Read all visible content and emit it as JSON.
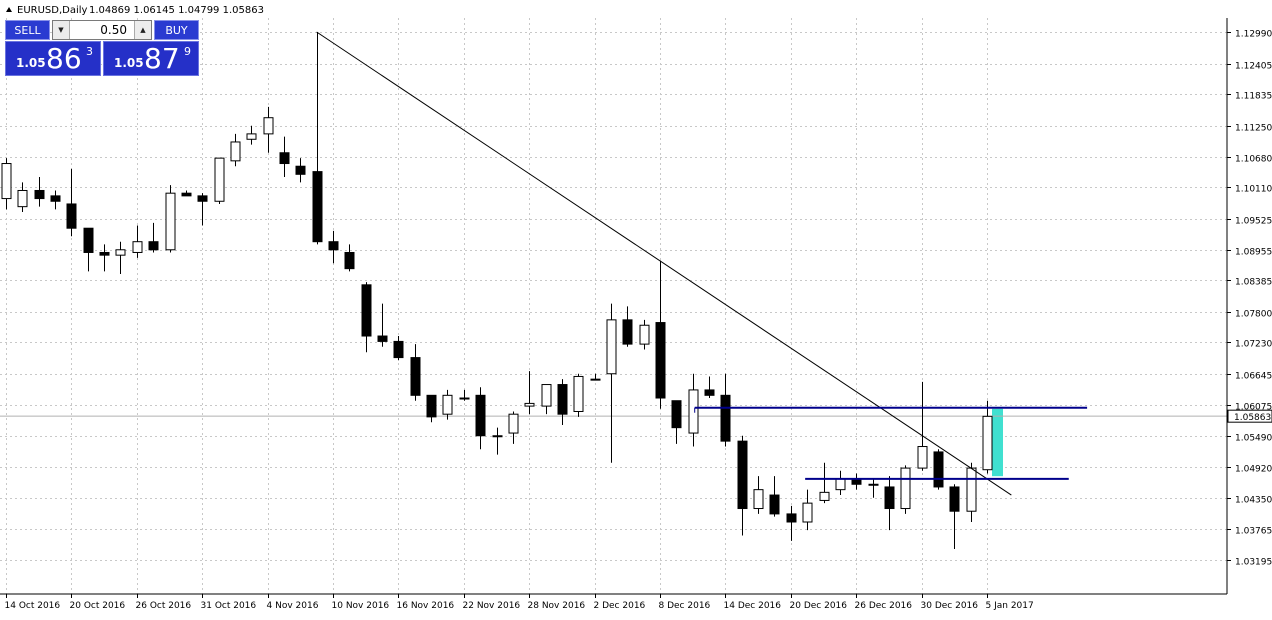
{
  "header": {
    "symbol_label": "EURUSD,Daily",
    "ohlc": "1.04869 1.06145 1.04799 1.05863"
  },
  "trade_panel": {
    "sell_label": "SELL",
    "buy_label": "BUY",
    "lot": "0.50",
    "sell_small": "1.05",
    "sell_big": "86",
    "sell_sup": "3",
    "buy_small": "1.05",
    "buy_big": "87",
    "buy_sup": "9",
    "color": "#2a3bd1"
  },
  "current_price_label": "1.05863",
  "colors": {
    "bull_body": "#ffffff",
    "bear_body": "#000000",
    "grid": "#c8c8c8",
    "level_line": "#00008b",
    "range_box": "#40e0d0",
    "trendline": "#000000"
  },
  "chart_data": {
    "type": "candlestick",
    "title": "EURUSD,Daily",
    "x_tick_labels": [
      "14 Oct 2016",
      "20 Oct 2016",
      "26 Oct 2016",
      "31 Oct 2016",
      "4 Nov 2016",
      "10 Nov 2016",
      "16 Nov 2016",
      "22 Nov 2016",
      "28 Nov 2016",
      "2 Dec 2016",
      "8 Dec 2016",
      "14 Dec 2016",
      "20 Dec 2016",
      "26 Dec 2016",
      "30 Dec 2016",
      "5 Jan 2017"
    ],
    "y_tick_labels": [
      "1.12990",
      "1.12405",
      "1.11835",
      "1.11250",
      "1.10680",
      "1.10110",
      "1.09525",
      "1.08955",
      "1.08385",
      "1.07800",
      "1.07230",
      "1.06645",
      "1.06075",
      "1.05490",
      "1.04920",
      "1.04350",
      "1.03765",
      "1.03195"
    ],
    "ylim": [
      1.0305,
      1.131
    ],
    "grid": true,
    "candles": [
      {
        "o": 1.099,
        "h": 1.1065,
        "l": 1.097,
        "c": 1.1055
      },
      {
        "o": 1.0975,
        "h": 1.102,
        "l": 1.0965,
        "c": 1.1005
      },
      {
        "o": 1.1005,
        "h": 1.103,
        "l": 1.0975,
        "c": 1.099
      },
      {
        "o": 1.0995,
        "h": 1.1005,
        "l": 1.097,
        "c": 1.0985
      },
      {
        "o": 1.098,
        "h": 1.1045,
        "l": 1.092,
        "c": 1.0935
      },
      {
        "o": 1.0935,
        "h": 1.0935,
        "l": 1.0855,
        "c": 1.089
      },
      {
        "o": 1.089,
        "h": 1.0905,
        "l": 1.0855,
        "c": 1.0885
      },
      {
        "o": 1.0885,
        "h": 1.091,
        "l": 1.085,
        "c": 1.0895
      },
      {
        "o": 1.089,
        "h": 1.094,
        "l": 1.088,
        "c": 1.091
      },
      {
        "o": 1.091,
        "h": 1.0945,
        "l": 1.089,
        "c": 1.0895
      },
      {
        "o": 1.0895,
        "h": 1.1015,
        "l": 1.089,
        "c": 1.1
      },
      {
        "o": 1.1,
        "h": 1.1005,
        "l": 1.0995,
        "c": 1.0995
      },
      {
        "o": 1.0995,
        "h": 1.1,
        "l": 1.094,
        "c": 1.0985
      },
      {
        "o": 1.0985,
        "h": 1.1065,
        "l": 1.098,
        "c": 1.1065
      },
      {
        "o": 1.106,
        "h": 1.111,
        "l": 1.105,
        "c": 1.1095
      },
      {
        "o": 1.11,
        "h": 1.1125,
        "l": 1.109,
        "c": 1.111
      },
      {
        "o": 1.111,
        "h": 1.116,
        "l": 1.1075,
        "c": 1.114
      },
      {
        "o": 1.1075,
        "h": 1.1105,
        "l": 1.103,
        "c": 1.1055
      },
      {
        "o": 1.105,
        "h": 1.1065,
        "l": 1.102,
        "c": 1.1035
      },
      {
        "o": 1.104,
        "h": 1.1299,
        "l": 1.0905,
        "c": 1.091
      },
      {
        "o": 1.091,
        "h": 1.093,
        "l": 1.087,
        "c": 1.0895
      },
      {
        "o": 1.089,
        "h": 1.0905,
        "l": 1.0855,
        "c": 1.086
      },
      {
        "o": 1.083,
        "h": 1.0835,
        "l": 1.0705,
        "c": 1.0735
      },
      {
        "o": 1.0735,
        "h": 1.0795,
        "l": 1.0715,
        "c": 1.0725
      },
      {
        "o": 1.0725,
        "h": 1.0735,
        "l": 1.069,
        "c": 1.0695
      },
      {
        "o": 1.0695,
        "h": 1.072,
        "l": 1.0615,
        "c": 1.0625
      },
      {
        "o": 1.0625,
        "h": 1.0625,
        "l": 1.0575,
        "c": 1.0585
      },
      {
        "o": 1.059,
        "h": 1.0635,
        "l": 1.058,
        "c": 1.0625
      },
      {
        "o": 1.062,
        "h": 1.0635,
        "l": 1.0615,
        "c": 1.062
      },
      {
        "o": 1.0625,
        "h": 1.064,
        "l": 1.0525,
        "c": 1.055
      },
      {
        "o": 1.055,
        "h": 1.0565,
        "l": 1.0515,
        "c": 1.055
      },
      {
        "o": 1.0555,
        "h": 1.0595,
        "l": 1.0535,
        "c": 1.059
      },
      {
        "o": 1.0605,
        "h": 1.067,
        "l": 1.059,
        "c": 1.061
      },
      {
        "o": 1.0605,
        "h": 1.064,
        "l": 1.059,
        "c": 1.0645
      },
      {
        "o": 1.0645,
        "h": 1.0655,
        "l": 1.057,
        "c": 1.059
      },
      {
        "o": 1.0595,
        "h": 1.0665,
        "l": 1.0585,
        "c": 1.066
      },
      {
        "o": 1.0655,
        "h": 1.0665,
        "l": 1.0655,
        "c": 1.0655
      },
      {
        "o": 1.0665,
        "h": 1.0795,
        "l": 1.05,
        "c": 1.0765
      },
      {
        "o": 1.0765,
        "h": 1.079,
        "l": 1.0715,
        "c": 1.072
      },
      {
        "o": 1.072,
        "h": 1.0765,
        "l": 1.071,
        "c": 1.0755
      },
      {
        "o": 1.076,
        "h": 1.0875,
        "l": 1.06,
        "c": 1.062
      },
      {
        "o": 1.0615,
        "h": 1.0615,
        "l": 1.0535,
        "c": 1.0565
      },
      {
        "o": 1.0555,
        "h": 1.0665,
        "l": 1.053,
        "c": 1.0635
      },
      {
        "o": 1.0635,
        "h": 1.066,
        "l": 1.062,
        "c": 1.0625
      },
      {
        "o": 1.0625,
        "h": 1.0665,
        "l": 1.053,
        "c": 1.054
      },
      {
        "o": 1.054,
        "h": 1.055,
        "l": 1.0365,
        "c": 1.0415
      },
      {
        "o": 1.0415,
        "h": 1.0475,
        "l": 1.0405,
        "c": 1.045
      },
      {
        "o": 1.044,
        "h": 1.0475,
        "l": 1.04,
        "c": 1.0405
      },
      {
        "o": 1.0405,
        "h": 1.042,
        "l": 1.0355,
        "c": 1.039
      },
      {
        "o": 1.039,
        "h": 1.045,
        "l": 1.0375,
        "c": 1.0425
      },
      {
        "o": 1.043,
        "h": 1.05,
        "l": 1.0425,
        "c": 1.0445
      },
      {
        "o": 1.045,
        "h": 1.0485,
        "l": 1.044,
        "c": 1.047
      },
      {
        "o": 1.047,
        "h": 1.048,
        "l": 1.045,
        "c": 1.046
      },
      {
        "o": 1.046,
        "h": 1.047,
        "l": 1.0435,
        "c": 1.046
      },
      {
        "o": 1.0455,
        "h": 1.0475,
        "l": 1.0375,
        "c": 1.0415
      },
      {
        "o": 1.0415,
        "h": 1.0495,
        "l": 1.0405,
        "c": 1.049
      },
      {
        "o": 1.049,
        "h": 1.065,
        "l": 1.0485,
        "c": 1.053
      },
      {
        "o": 1.052,
        "h": 1.0525,
        "l": 1.045,
        "c": 1.0455
      },
      {
        "o": 1.0455,
        "h": 1.046,
        "l": 1.034,
        "c": 1.041
      },
      {
        "o": 1.041,
        "h": 1.05,
        "l": 1.039,
        "c": 1.049
      },
      {
        "o": 1.0487,
        "h": 1.0615,
        "l": 1.048,
        "c": 1.0586
      }
    ],
    "annotations": {
      "trendline": [
        {
          "candle": 19,
          "price": 1.1299
        },
        {
          "candle": 61,
          "price": 1.044
        }
      ],
      "resistance_level": {
        "price": 1.0602,
        "from_candle": 42,
        "to_candle": 66
      },
      "support_level": {
        "price": 1.047,
        "from_candle": 49,
        "to_candle": 65
      },
      "range_box": {
        "from_price": 1.0475,
        "to_price": 1.06
      },
      "current_price": 1.05863
    }
  }
}
